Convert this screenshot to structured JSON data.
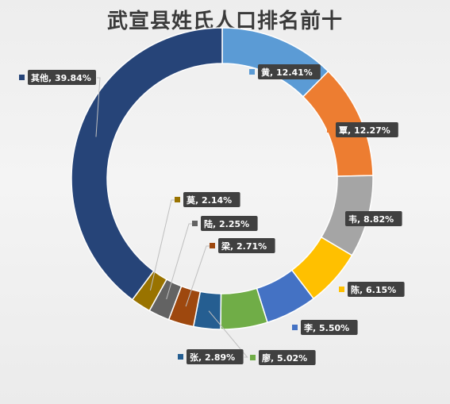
{
  "chart_data": {
    "type": "pie",
    "donut": true,
    "title": "武宣县姓氏人口排名前十",
    "legend": "none",
    "slices": [
      {
        "name": "黄",
        "value": 12.41,
        "label": "黄, 12.41%",
        "color": "#5b9bd5"
      },
      {
        "name": "覃",
        "value": 12.27,
        "label": "覃, 12.27%",
        "color": "#ed7d31"
      },
      {
        "name": "韦",
        "value": 8.82,
        "label": "韦, 8.82%",
        "color": "#a5a5a5"
      },
      {
        "name": "陈",
        "value": 6.15,
        "label": "陈, 6.15%",
        "color": "#ffc000"
      },
      {
        "name": "李",
        "value": 5.5,
        "label": "李, 5.50%",
        "color": "#4472c4"
      },
      {
        "name": "廖",
        "value": 5.02,
        "label": "廖, 5.02%",
        "color": "#70ad47"
      },
      {
        "name": "张",
        "value": 2.89,
        "label": "张, 2.89%",
        "color": "#255e91"
      },
      {
        "name": "梁",
        "value": 2.71,
        "label": "梁, 2.71%",
        "color": "#9e480e"
      },
      {
        "name": "陆",
        "value": 2.25,
        "label": "陆, 2.25%",
        "color": "#636363"
      },
      {
        "name": "莫",
        "value": 2.14,
        "label": "莫, 2.14%",
        "color": "#997300"
      },
      {
        "name": "其他",
        "value": 39.84,
        "label": "其他, 39.84%",
        "color": "#264478"
      }
    ]
  }
}
